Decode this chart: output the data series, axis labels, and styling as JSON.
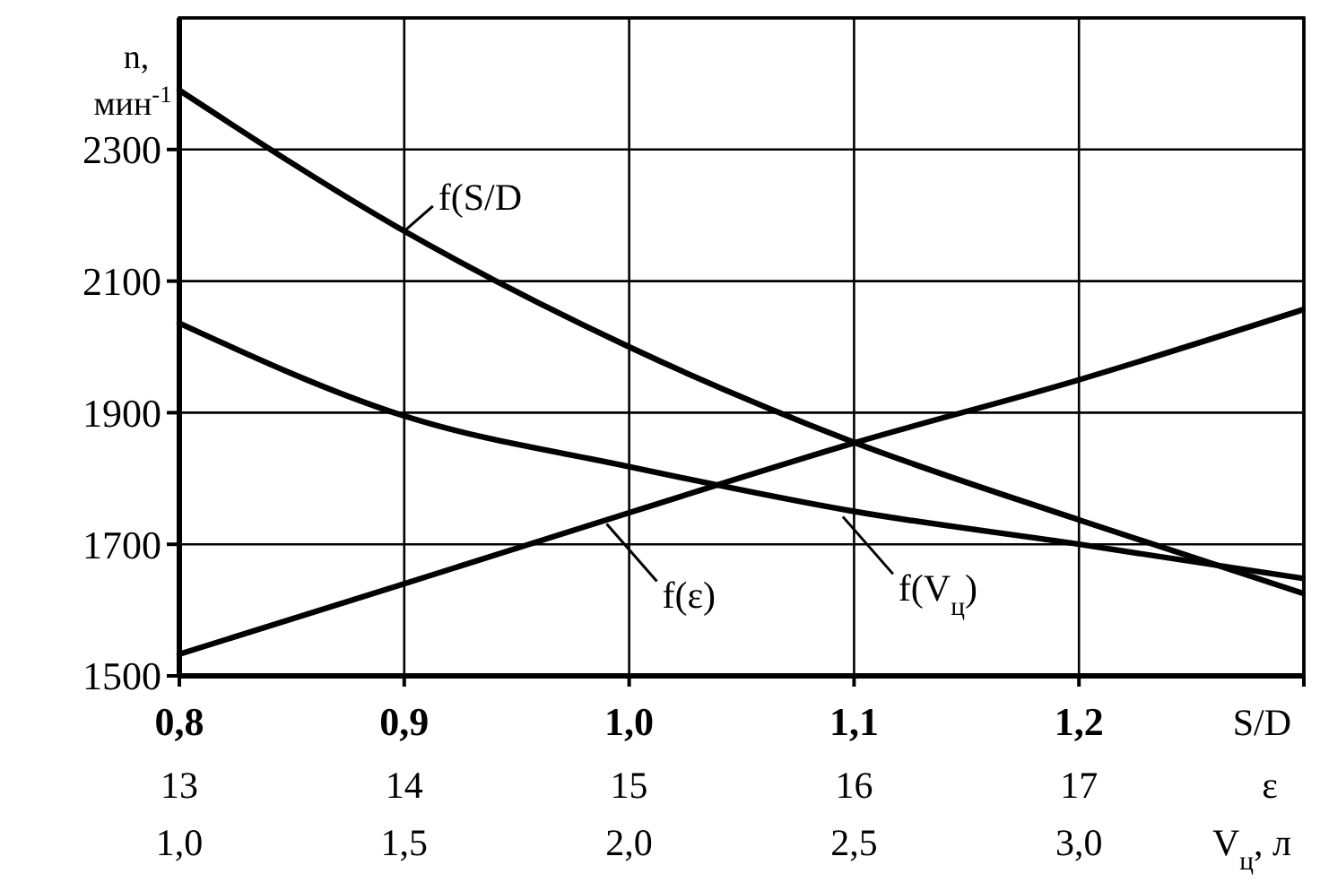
{
  "chart_data": [
    {
      "type": "line",
      "ylabel": "n, мин$^{-1}$",
      "xlabel": "S/D",
      "xlim": [
        0.8,
        1.3
      ],
      "xticks": [
        {
          "value": 0.8,
          "label": "0,8"
        },
        {
          "value": 0.9,
          "label": "0,9"
        },
        {
          "value": 1.0,
          "label": "1,0"
        },
        {
          "value": 1.1,
          "label": "1,1"
        },
        {
          "value": 1.2,
          "label": "1,2"
        },
        {
          "value": 1.3,
          "label": null
        }
      ],
      "ylim": [
        1500,
        2500
      ],
      "yticks": [
        1500,
        1700,
        1900,
        2100,
        2300
      ],
      "grid": true,
      "line_style": "solid",
      "series": [
        {
          "color": "#000000",
          "x": [
            0.8,
            0.9,
            1.0,
            1.1,
            1.2,
            1.3
          ],
          "values": [
            2390,
            2176,
            2000,
            1855,
            1737,
            1625
          ]
        }
      ],
      "annotations": [
        {
          "text": "f(S/D",
          "x": 0.9,
          "y": 2176
        }
      ]
    },
    {
      "type": "line",
      "xlabel": "ε",
      "xlim": [
        13,
        18
      ],
      "xticks": [
        13,
        14,
        15,
        16,
        17
      ],
      "ylim": [
        1500,
        2500
      ],
      "tick_labels": "x",
      "line_style": "solid",
      "series": [
        {
          "color": "#000000",
          "x": [
            13,
            14,
            15,
            16,
            17,
            18
          ],
          "values": [
            1533,
            1640,
            1748,
            1854,
            1950,
            2057
          ]
        }
      ],
      "annotations": [
        {
          "text": "f(ε)",
          "x": 14.9,
          "y": 1731
        }
      ]
    },
    {
      "type": "line",
      "xlabel": "V$_{ц}$, л",
      "xlim": [
        1.0,
        3.5
      ],
      "xticks": [
        {
          "value": 1.0,
          "label": "1,0"
        },
        {
          "value": 1.5,
          "label": "1,5"
        },
        {
          "value": 2.0,
          "label": "2,0"
        },
        {
          "value": 2.5,
          "label": "2,5"
        },
        {
          "value": 3.0,
          "label": "3,0"
        }
      ],
      "ylim": [
        1500,
        2500
      ],
      "tick_labels": "x",
      "line_style": "solid",
      "series": [
        {
          "color": "#000000",
          "x": [
            1.0,
            1.5,
            2.0,
            2.5,
            3.0,
            3.5
          ],
          "values": [
            2036,
            1895,
            1818,
            1750,
            1700,
            1648
          ]
        }
      ],
      "annotations": [
        {
          "text": "f(V$_{ц}$)",
          "x": 2.475,
          "y": 1742
        }
      ]
    }
  ]
}
